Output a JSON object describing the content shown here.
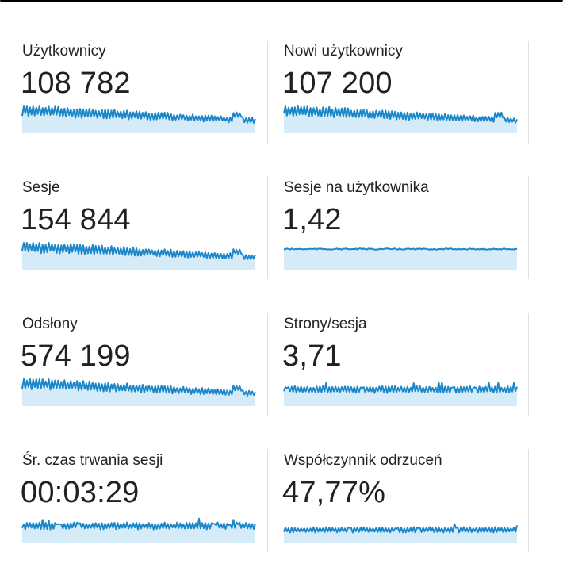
{
  "colors": {
    "line": "#1b87c9",
    "fill": "#d6ebf8",
    "text": "#212121",
    "divider": "#e0e0e0"
  },
  "metrics": [
    {
      "id": "users",
      "label": "Użytkownicy",
      "value": "108 782",
      "trend": "high-decline"
    },
    {
      "id": "new-users",
      "label": "Nowi użytkownicy",
      "value": "107 200",
      "trend": "high-decline"
    },
    {
      "id": "sessions",
      "label": "Sesje",
      "value": "154 844",
      "trend": "high-decline"
    },
    {
      "id": "sessions-per-user",
      "label": "Sesje na użytkownika",
      "value": "1,42",
      "trend": "flat"
    },
    {
      "id": "pageviews",
      "label": "Odsłony",
      "value": "574 199",
      "trend": "high-decline"
    },
    {
      "id": "pages-per-session",
      "label": "Strony/sesja",
      "value": "3,71",
      "trend": "mid-flat"
    },
    {
      "id": "avg-session-duration",
      "label": "Śr. czas trwania sesji",
      "value": "00:03:29",
      "trend": "mid-flat"
    },
    {
      "id": "bounce-rate",
      "label": "Współczynnik odrzuceń",
      "value": "47,77%",
      "trend": "low-flat"
    }
  ]
}
